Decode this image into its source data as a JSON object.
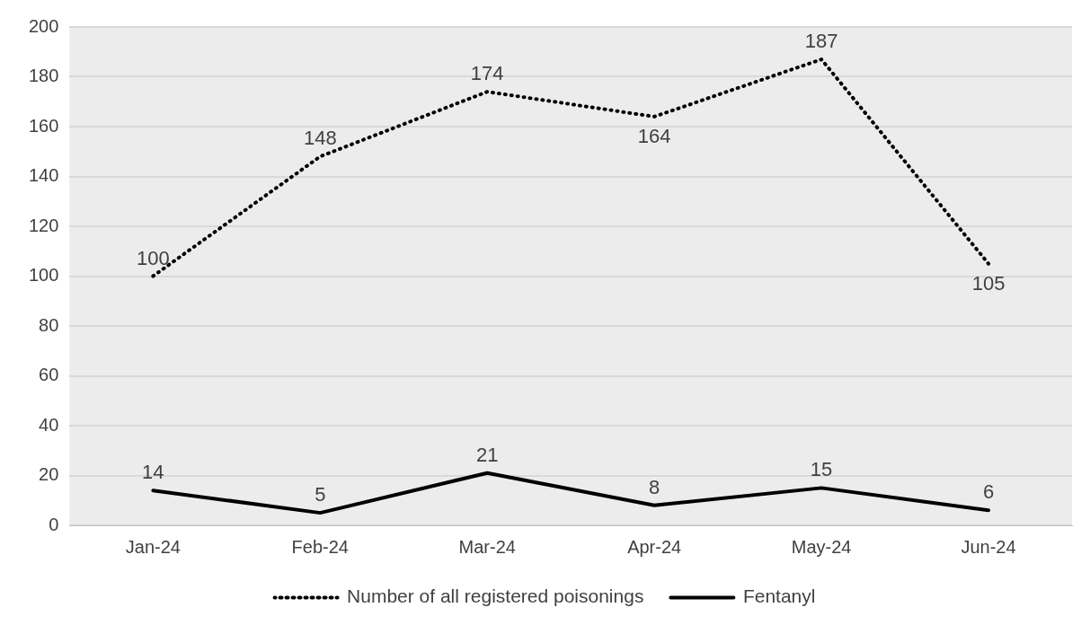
{
  "chart_data": {
    "type": "line",
    "categories": [
      "Jan-24",
      "Feb-24",
      "Mar-24",
      "Apr-24",
      "May-24",
      "Jun-24"
    ],
    "series": [
      {
        "name": "Number of all registered poisonings",
        "color": "#000000",
        "line_style": "dotted",
        "values": [
          100,
          148,
          174,
          164,
          187,
          105
        ]
      },
      {
        "name": "Fentanyl",
        "color": "#000000",
        "line_style": "solid",
        "values": [
          14,
          5,
          21,
          8,
          15,
          6
        ]
      }
    ],
    "ylim": [
      0,
      200
    ],
    "yticks": [
      0,
      20,
      40,
      60,
      80,
      100,
      120,
      140,
      160,
      180,
      200
    ],
    "grid": "y",
    "legend": "bottom",
    "marker": "none",
    "data_labels": true
  }
}
